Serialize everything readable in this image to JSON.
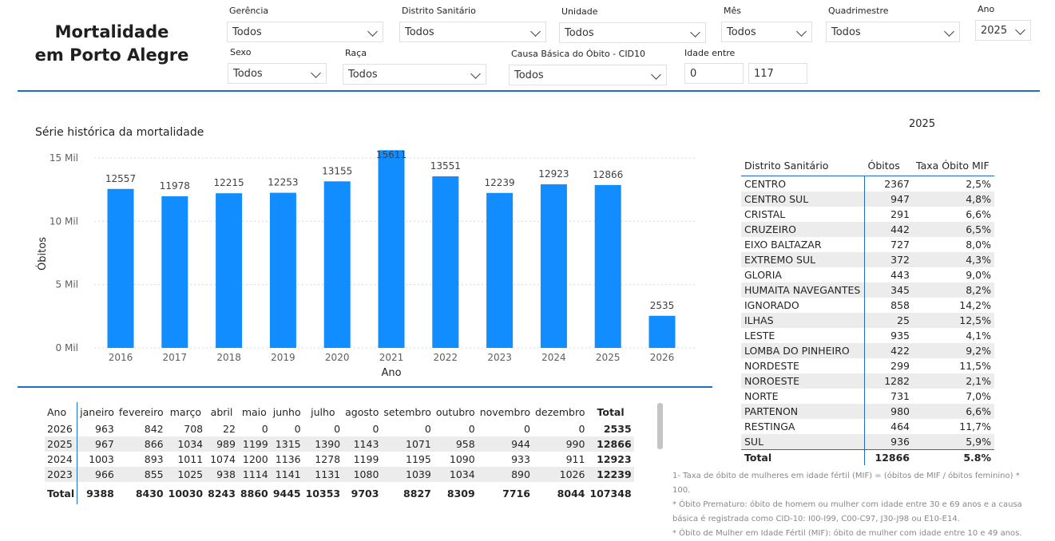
{
  "title_line1": "Mortalidade",
  "title_line2": "em Porto Alegre",
  "filters": {
    "gerencia": {
      "label": "Gerência",
      "value": "Todos"
    },
    "distrito": {
      "label": "Distrito Sanitário",
      "value": "Todos"
    },
    "unidade": {
      "label": "Unidade",
      "value": "Todos"
    },
    "mes": {
      "label": "Mês",
      "value": "Todos"
    },
    "quadrimestre": {
      "label": "Quadrimestre",
      "value": "Todos"
    },
    "ano": {
      "label": "Ano",
      "value": "2025"
    },
    "sexo": {
      "label": "Sexo",
      "value": "Todos"
    },
    "raca": {
      "label": "Raça",
      "value": "Todos"
    },
    "causa": {
      "label": "Causa Básica do Óbito - CID10",
      "value": "Todos"
    },
    "idade": {
      "label": "Idade entre",
      "min": "0",
      "max": "117"
    }
  },
  "chart_title": "Série histórica da mortalidade",
  "chart_data": {
    "type": "bar",
    "categories": [
      "2016",
      "2017",
      "2018",
      "2019",
      "2020",
      "2021",
      "2022",
      "2023",
      "2024",
      "2025",
      "2026"
    ],
    "values": [
      12557,
      11978,
      12215,
      12253,
      13155,
      15611,
      13551,
      12239,
      12923,
      12866,
      2535
    ],
    "xlabel": "Ano",
    "ylabel": "Óbitos",
    "yticks": [
      "0 Mil",
      "5 Mil",
      "10 Mil",
      "15 Mil"
    ],
    "ylim": [
      0,
      15000
    ],
    "color": "#118dff",
    "grid": true
  },
  "district_year": "2025",
  "district_table": {
    "headers": [
      "Distrito Sanitário",
      "Óbitos",
      "Taxa Óbito MIF"
    ],
    "rows": [
      [
        "CENTRO",
        "2367",
        "2,5%"
      ],
      [
        "CENTRO SUL",
        "947",
        "4,8%"
      ],
      [
        "CRISTAL",
        "291",
        "6,6%"
      ],
      [
        "CRUZEIRO",
        "442",
        "6,5%"
      ],
      [
        "EIXO BALTAZAR",
        "727",
        "8,0%"
      ],
      [
        "EXTREMO SUL",
        "372",
        "4,3%"
      ],
      [
        "GLORIA",
        "443",
        "9,0%"
      ],
      [
        "HUMAITA NAVEGANTES",
        "345",
        "8,2%"
      ],
      [
        "IGNORADO",
        "858",
        "14,2%"
      ],
      [
        "ILHAS",
        "25",
        "12,5%"
      ],
      [
        "LESTE",
        "935",
        "4,1%"
      ],
      [
        "LOMBA DO PINHEIRO",
        "422",
        "9,2%"
      ],
      [
        "NORDESTE",
        "299",
        "11,5%"
      ],
      [
        "NOROESTE",
        "1282",
        "2,1%"
      ],
      [
        "NORTE",
        "731",
        "7,0%"
      ],
      [
        "PARTENON",
        "980",
        "6,6%"
      ],
      [
        "RESTINGA",
        "464",
        "11,7%"
      ],
      [
        "SUL",
        "936",
        "5,9%"
      ]
    ],
    "total": [
      "Total",
      "12866",
      "5.8%"
    ]
  },
  "month_table": {
    "headers": [
      "Ano",
      "janeiro",
      "fevereiro",
      "março",
      "abril",
      "maio",
      "junho",
      "julho",
      "agosto",
      "setembro",
      "outubro",
      "novembro",
      "dezembro",
      "Total"
    ],
    "rows": [
      [
        "2026",
        "963",
        "842",
        "708",
        "22",
        "0",
        "0",
        "0",
        "0",
        "0",
        "0",
        "0",
        "0",
        "2535"
      ],
      [
        "2025",
        "967",
        "866",
        "1034",
        "989",
        "1199",
        "1315",
        "1390",
        "1143",
        "1071",
        "958",
        "944",
        "990",
        "12866"
      ],
      [
        "2024",
        "1003",
        "893",
        "1011",
        "1074",
        "1200",
        "1136",
        "1278",
        "1199",
        "1195",
        "1090",
        "933",
        "911",
        "12923"
      ],
      [
        "2023",
        "966",
        "855",
        "1025",
        "938",
        "1114",
        "1141",
        "1131",
        "1080",
        "1039",
        "1034",
        "890",
        "1026",
        "12239"
      ]
    ],
    "total": [
      "Total",
      "9388",
      "8430",
      "10030",
      "8243",
      "8860",
      "9445",
      "10353",
      "9703",
      "8827",
      "8309",
      "7716",
      "8044",
      "107348"
    ]
  },
  "notes": [
    "1- Taxa de óbito de mulheres em idade fértil (MIF) = (óbitos de MIF / óbitos feminino) * 100.",
    "* Óbito Prematuro: óbito de homem ou mulher com idade entre 30 e 69 anos e a causa básica é registrada como CID-10: I00-I99, C00-C97, J30-J98 ou E10-E14.",
    "* Óbito de Mulher em Idade Fértil (MIF): óbito de mulher com idade entre 10 e 49 anos."
  ]
}
